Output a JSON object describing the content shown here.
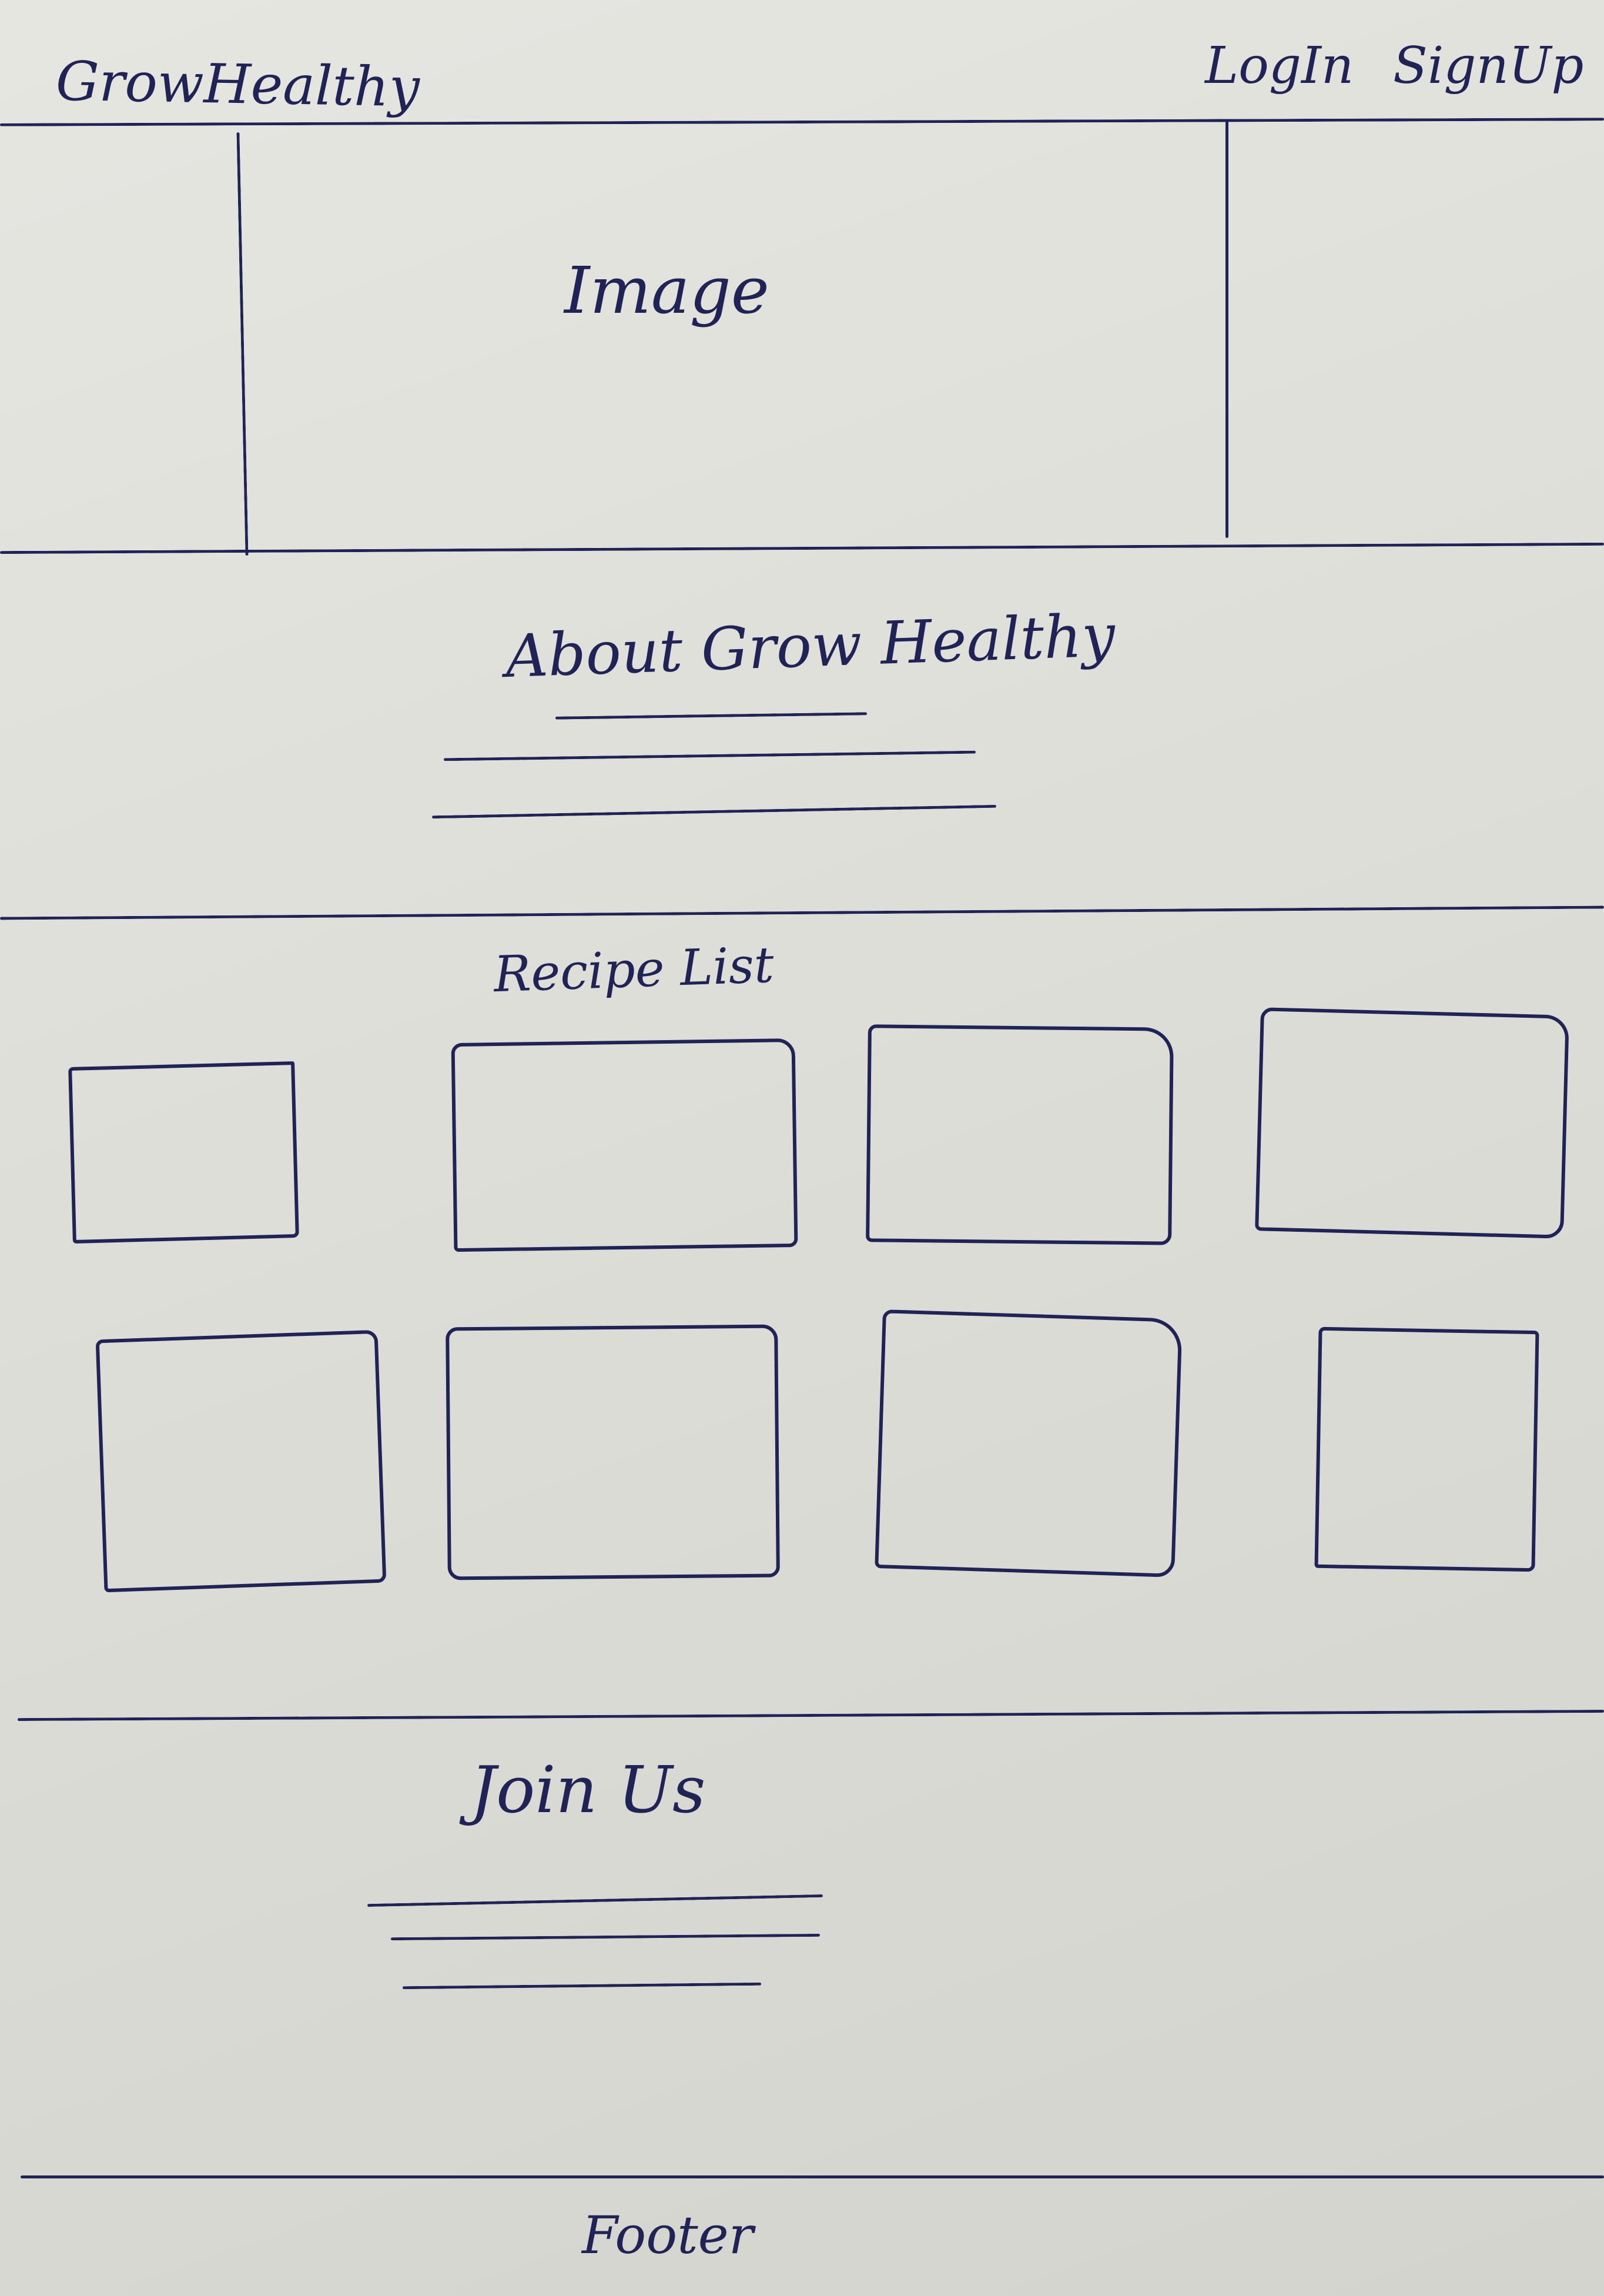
{
  "header": {
    "brand": "GrowHealthy",
    "login_label": "LogIn",
    "signup_label": "SignUp"
  },
  "hero": {
    "image_label": "Image"
  },
  "about": {
    "title": "About Grow Healthy"
  },
  "recipes": {
    "title": "Recipe List",
    "card_count": 8
  },
  "join": {
    "title": "Join Us"
  },
  "footer": {
    "label": "Footer"
  },
  "colors": {
    "ink": "#1f2356",
    "paper": "#e2e2dc"
  }
}
